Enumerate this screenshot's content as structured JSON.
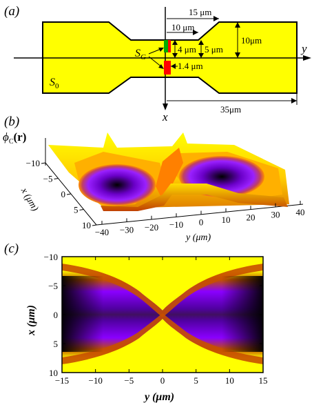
{
  "panels": {
    "a": {
      "label": "(a)",
      "dim_15": "15 μm",
      "dim_10_top": "10 μm",
      "dim_4": "4 μm",
      "dim_5": "5 μm",
      "dim_10_right": "10μm",
      "dim_1_4": "1.4 μm",
      "dim_35": "35μm",
      "sg": "S",
      "sg_sub": "G",
      "s0": "S",
      "s0_sub": "0",
      "axis_y": "y",
      "axis_x": "x",
      "colors": {
        "device": "#ffff00",
        "gate_left": "#00aa00",
        "gate_right": "#ff0000",
        "gate_bottom": "#ff0000"
      }
    },
    "b": {
      "label": "(b)",
      "zlabel_main": "ϕ",
      "zlabel_sub": "C",
      "zlabel_arg": "(r)",
      "x_axis_label": "x (μm)",
      "y_axis_label": "y (μm)",
      "x_ticks": [
        "−10",
        "−5",
        "0",
        "5",
        "10"
      ],
      "y_ticks": [
        "−40",
        "−30",
        "−20",
        "−10",
        "0",
        "10",
        "20",
        "30",
        "40"
      ]
    },
    "c": {
      "label": "(c)",
      "x_axis_label": "x (μm)",
      "y_axis_label": "y (μm)"
    }
  },
  "chart_data": {
    "type": "heatmap",
    "x": [
      -15,
      -10,
      -5,
      0,
      5,
      10,
      15
    ],
    "y": [
      -10,
      -5,
      0,
      5,
      10
    ],
    "xticks": [
      "−15",
      "−10",
      "−5",
      "0",
      "5",
      "10",
      "15"
    ],
    "yticks": [
      "−10",
      "−5",
      "0",
      "5",
      "10"
    ],
    "xlim": [
      -15,
      15
    ],
    "ylim": [
      -10,
      10
    ],
    "colormap": [
      "#000000",
      "#8b00ff",
      "#c84000",
      "#ffff00"
    ]
  }
}
